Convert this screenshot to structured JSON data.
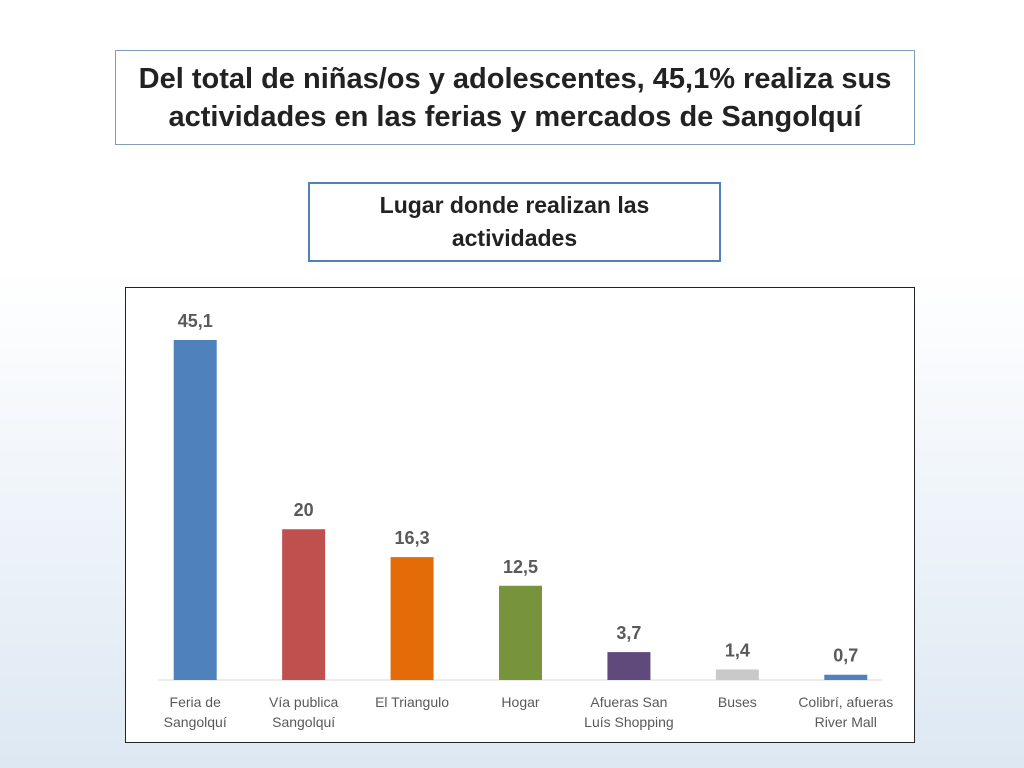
{
  "chart_data": {
    "type": "bar",
    "title": "Del total de niñas/os y adolescentes, 45,1% realiza sus actividades en las ferias y mercados de Sangolquí",
    "subtitle": "Lugar donde realizan las actividades",
    "categories": [
      "Feria de Sangolquí",
      "Vía publica Sangolquí",
      "El Triangulo",
      "Hogar",
      "Afueras San Luís Shopping",
      "Buses",
      "Colibrí, afueras River Mall"
    ],
    "values": [
      45.1,
      20,
      16.3,
      12.5,
      3.7,
      1.4,
      0.7
    ],
    "value_labels": [
      "45,1",
      "20",
      "16,3",
      "12,5",
      "3,7",
      "1,4",
      "0,7"
    ],
    "colors": [
      "#4f81bd",
      "#c0504d",
      "#e36c09",
      "#77933c",
      "#604a7b",
      "#c9c9c9",
      "#4f81bd"
    ]
  }
}
